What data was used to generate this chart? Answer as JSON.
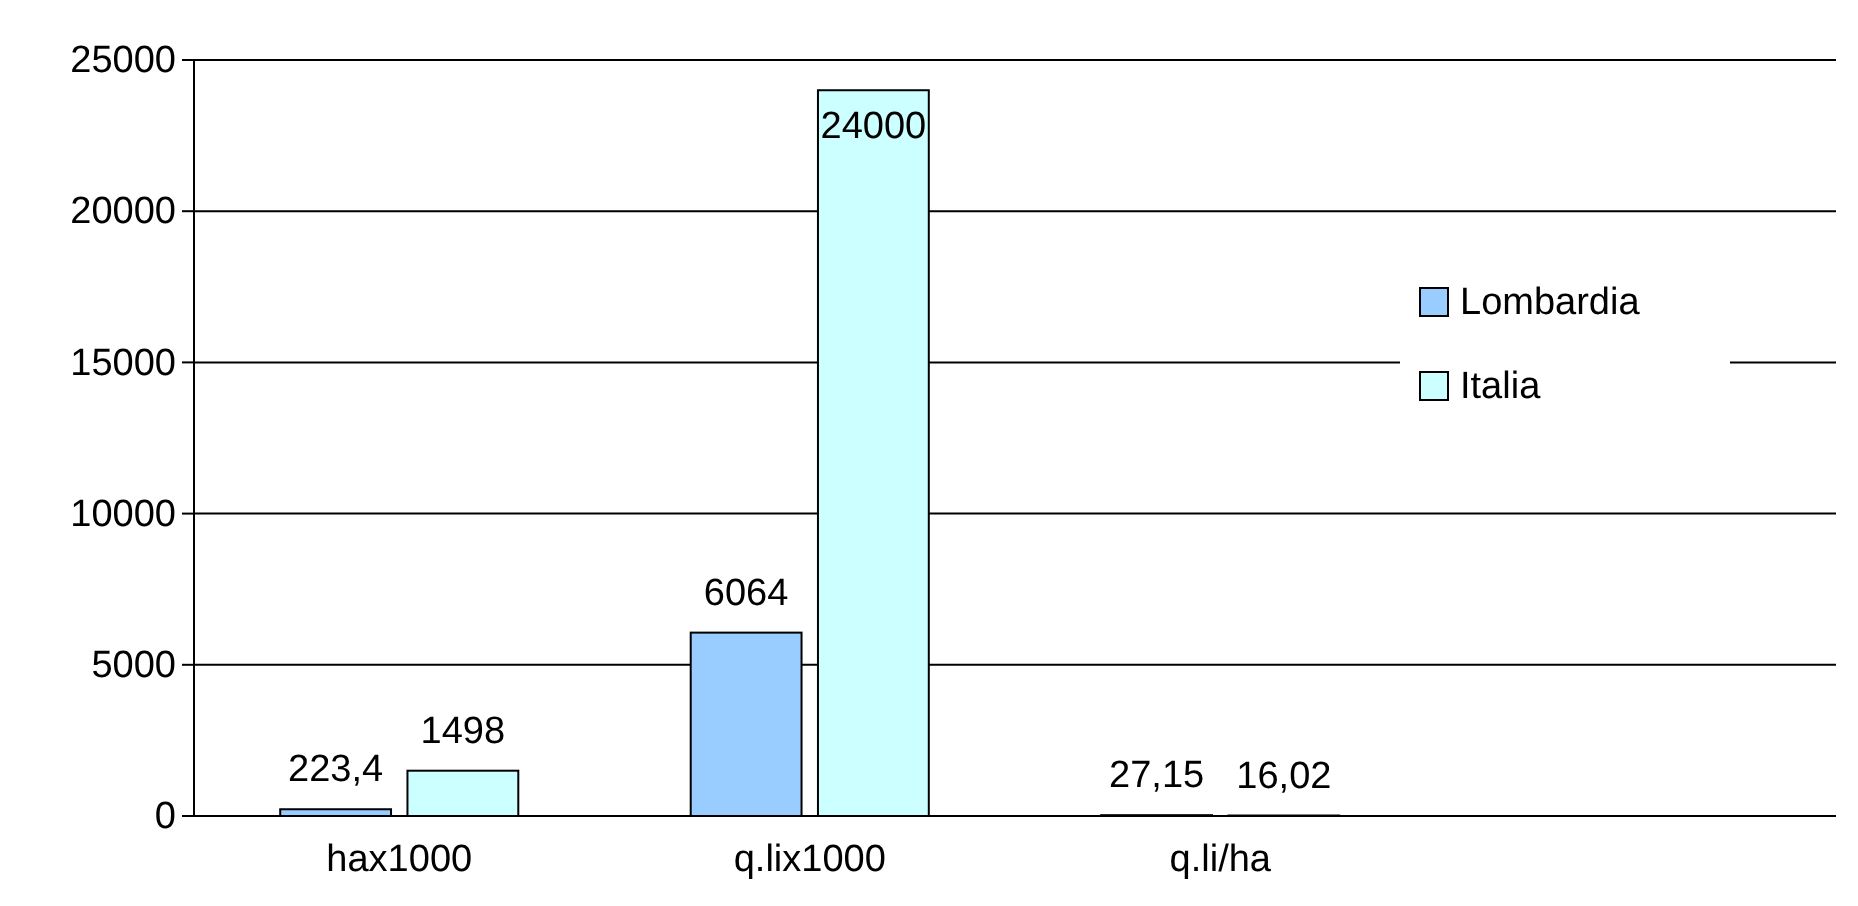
{
  "chart_data": {
    "type": "bar",
    "categories": [
      "hax1000",
      "q.lix1000",
      "q.li/ha",
      null
    ],
    "series": [
      {
        "name": "Lombardia",
        "color": "#99ccff",
        "values": [
          223.4,
          6064,
          27.15,
          null
        ],
        "value_labels": [
          "223,4",
          "6064",
          "27,15",
          null
        ]
      },
      {
        "name": "Italia",
        "color": "#ccffff",
        "values": [
          1498,
          24000,
          16.02,
          null
        ],
        "value_labels": [
          "1498",
          "24000",
          "16,02",
          null
        ]
      }
    ],
    "ylim": [
      0,
      25000
    ],
    "yticks": [
      0,
      5000,
      10000,
      15000,
      20000,
      25000
    ],
    "grid": "y",
    "legend": "right"
  }
}
